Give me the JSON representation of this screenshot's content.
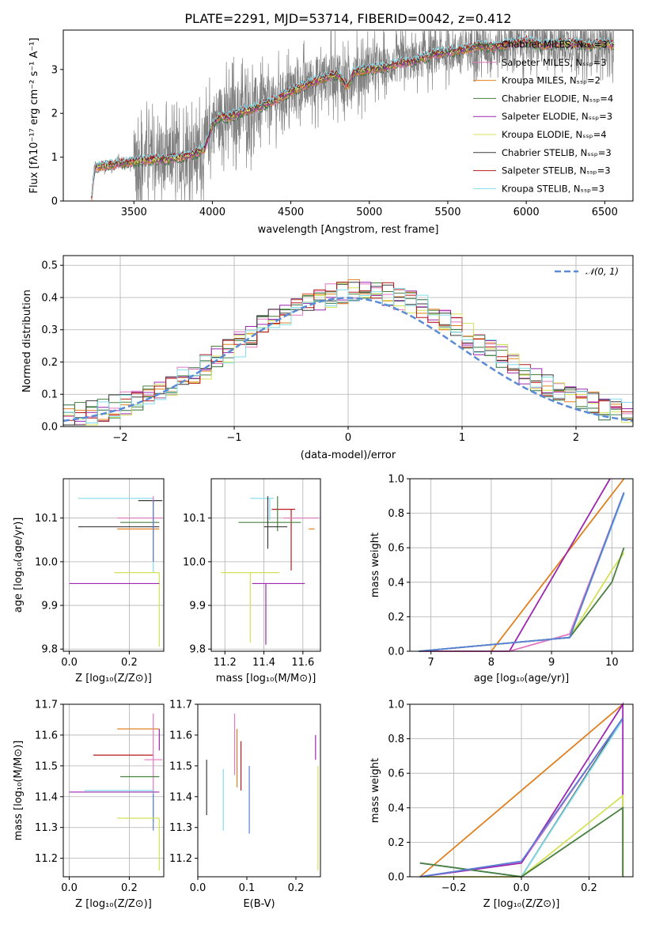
{
  "figure_title": "PLATE=2291, MJD=53714, FIBERID=0042, z=0.412",
  "colors": {
    "chabrier_miles": "#2d6f3a",
    "salpeter_miles": "#e377c2",
    "kroupa_miles": "#e08020",
    "chabrier_elodie": "#4a8040",
    "salpeter_elodie": "#9c27b0",
    "kroupa_elodie": "#d4e157",
    "chabrier_stelib": "#3a3a3a",
    "salpeter_stelib": "#b71c1c",
    "kroupa_stelib": "#80deea",
    "data": "#808080",
    "gauss": "#5b8bd6",
    "blue": "#5b7fd6"
  },
  "chart_data": [
    {
      "id": "spectrum",
      "type": "line",
      "xlabel": "wavelength [Angstrom, rest frame]",
      "ylabel": "Flux [fλ10⁻¹⁷ erg cm⁻² s⁻¹ A⁻¹]",
      "xlim": [
        3050,
        6680
      ],
      "ylim": [
        0,
        3.9
      ],
      "xticks": [
        3500,
        4000,
        4500,
        5000,
        5500,
        6000,
        6500
      ],
      "yticks": [
        0,
        1,
        2,
        3
      ],
      "grid": false,
      "legend_position": "top-right",
      "legend": [
        "Chabrier MILES, Nₛₛₚ=3",
        "Salpeter MILES, Nₛₛₚ=3",
        "Kroupa MILES, Nₛₛₚ=2",
        "Chabrier ELODIE, Nₛₛₚ=4",
        "Salpeter ELODIE, Nₛₛₚ=3",
        "Kroupa ELODIE, Nₛₛₚ=4",
        "Chabrier STELIB, Nₛₛₚ=3",
        "Salpeter STELIB, Nₛₛₚ=3",
        "Kroupa STELIB, Nₛₛₚ=3"
      ],
      "model_curve": {
        "x": [
          3230,
          3250,
          3300,
          3400,
          3500,
          3600,
          3700,
          3800,
          3900,
          3950,
          4000,
          4050,
          4100,
          4200,
          4300,
          4400,
          4500,
          4600,
          4700,
          4800,
          4862,
          4900,
          5000,
          5100,
          5200,
          5300,
          5400,
          5500,
          5600,
          5700,
          5800,
          5900,
          6000,
          6100,
          6200,
          6300,
          6400,
          6500,
          6560
        ],
        "y": [
          0.05,
          0.75,
          0.8,
          0.85,
          0.9,
          0.95,
          0.95,
          1.0,
          1.1,
          1.2,
          1.75,
          1.95,
          1.9,
          2.05,
          2.15,
          2.3,
          2.5,
          2.65,
          2.8,
          2.9,
          2.6,
          2.95,
          3.0,
          3.05,
          3.15,
          3.2,
          3.35,
          3.4,
          3.45,
          3.55,
          3.5,
          3.6,
          3.65,
          3.55,
          3.6,
          3.6,
          3.55,
          3.6,
          3.55
        ]
      }
    },
    {
      "id": "residuals",
      "type": "line",
      "xlabel": "(data-model)/error",
      "ylabel": "Normed distribution",
      "xlim": [
        -2.5,
        2.5
      ],
      "ylim": [
        0,
        0.53
      ],
      "xticks": [
        -2,
        -1,
        0,
        1,
        2
      ],
      "yticks": [
        0.0,
        0.1,
        0.2,
        0.3,
        0.4,
        0.5
      ],
      "grid": true,
      "legend_position": "top-right",
      "legend": [
        "𝒩(0, 1)"
      ],
      "gaussian": {
        "mean": 0,
        "sigma": 1
      }
    },
    {
      "id": "age-vs-Z",
      "type": "scatter",
      "xlabel": "Z [log₁₀(Z/Z⊙)]",
      "ylabel": "age  [log₁₀(age/yr)]",
      "xlim": [
        -0.02,
        0.315
      ],
      "ylim": [
        9.795,
        10.19
      ],
      "xticks": [
        0.0,
        0.2
      ],
      "yticks": [
        9.8,
        9.9,
        10.0,
        10.1
      ],
      "grid": true
    },
    {
      "id": "age-vs-mass",
      "type": "scatter",
      "xlabel": "mass [log₁₀(M/M⊙)]",
      "ylabel": "",
      "xlim": [
        11.13,
        11.69
      ],
      "ylim": [
        9.795,
        10.19
      ],
      "xticks": [
        11.2,
        11.4,
        11.6
      ],
      "yticks": [
        9.8,
        9.9,
        10.0,
        10.1
      ],
      "grid": true
    },
    {
      "id": "massweight-vs-age",
      "type": "line",
      "xlabel": "age  [log₁₀(age/yr)]",
      "ylabel": "mass weight",
      "xlim": [
        6.65,
        10.35
      ],
      "ylim": [
        0,
        1.0
      ],
      "xticks": [
        7,
        8,
        9,
        10
      ],
      "yticks": [
        0.0,
        0.2,
        0.4,
        0.6,
        0.8,
        1.0
      ],
      "grid": true
    },
    {
      "id": "mass-vs-Z",
      "type": "scatter",
      "xlabel": "Z [log₁₀(Z/Z⊙)]",
      "ylabel": "mass [log₁₀(M/M⊙)]",
      "xlim": [
        -0.02,
        0.315
      ],
      "ylim": [
        11.14,
        11.7
      ],
      "xticks": [
        0.0,
        0.2
      ],
      "yticks": [
        11.2,
        11.3,
        11.4,
        11.5,
        11.6,
        11.7
      ],
      "grid": true
    },
    {
      "id": "mass-vs-ebv",
      "type": "scatter",
      "xlabel": "E(B-V)",
      "ylabel": "",
      "xlim": [
        0.0,
        0.25
      ],
      "ylim": [
        11.14,
        11.7
      ],
      "xticks": [
        0.0,
        0.1,
        0.2
      ],
      "yticks": [
        11.2,
        11.3,
        11.4,
        11.5,
        11.6,
        11.7
      ],
      "grid": false
    },
    {
      "id": "massweight-vs-Z",
      "type": "line",
      "xlabel": "Z [log₁₀(Z/Z⊙)]",
      "ylabel": "mass weight",
      "xlim": [
        -0.33,
        0.33
      ],
      "ylim": [
        0,
        1.0
      ],
      "xticks": [
        -0.2,
        0.0,
        0.2
      ],
      "yticks": [
        0.0,
        0.2,
        0.4,
        0.6,
        0.8,
        1.0
      ],
      "grid": true
    }
  ]
}
